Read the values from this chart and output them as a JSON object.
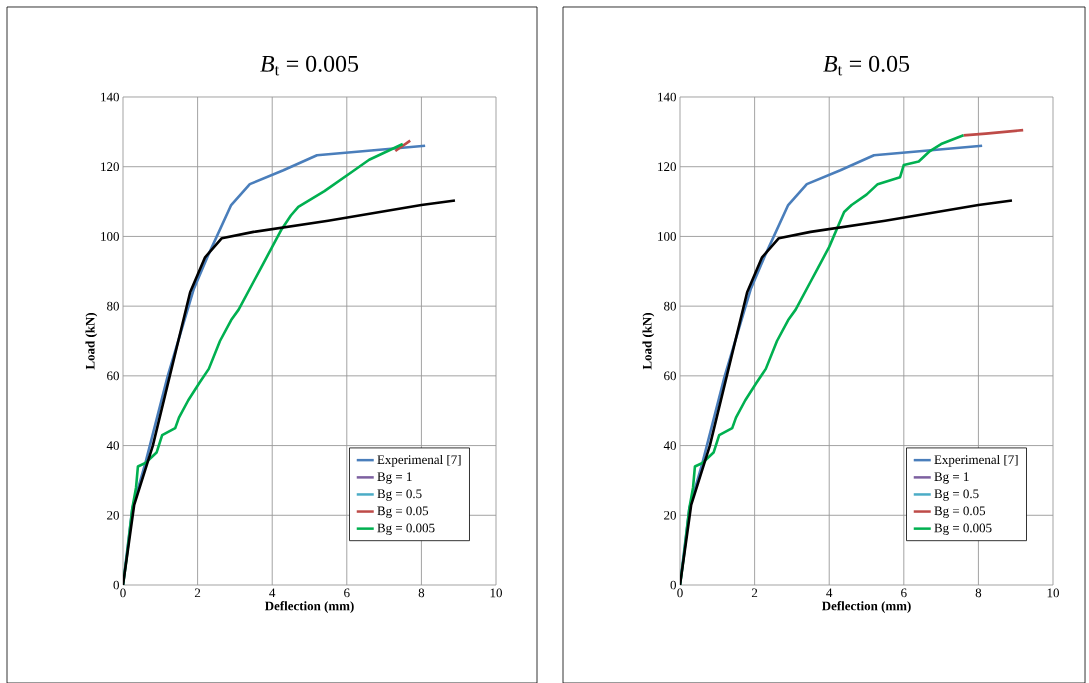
{
  "chart_data": [
    {
      "type": "line",
      "title": "*B*$_{t}$ = 0.005",
      "xlabel": "Deflection (mm)",
      "ylabel": "Load  (kN)",
      "xlim": [
        0,
        10
      ],
      "ylim": [
        0,
        140
      ],
      "xticks": [
        0,
        2,
        4,
        6,
        8,
        10
      ],
      "yticks": [
        0,
        20,
        40,
        60,
        80,
        100,
        120,
        140
      ],
      "grid": true,
      "legend": "bottom right",
      "series": [
        {
          "name": "Experimenal [7]",
          "color": "#4a7ebb",
          "x": [
            0,
            0.25,
            0.6,
            1.2,
            1.9,
            2.3,
            2.9,
            3.4,
            4.3,
            5.2,
            6.5,
            8.1
          ],
          "values": [
            0,
            22,
            35,
            60,
            85,
            95,
            109,
            115,
            119,
            123.3,
            124.5,
            126
          ]
        },
        {
          "name": "Bg = 1",
          "color": "#7d60a0"
        },
        {
          "name": "Bg = 0.5",
          "color": "#4bacc6"
        },
        {
          "name": "Bg = 0.05",
          "color": "#be4b48",
          "x": [
            7.3,
            7.7
          ],
          "values": [
            124.5,
            127.5
          ]
        },
        {
          "name": "Bg = 0.005",
          "color": "#00b050",
          "x": [
            0,
            0.1,
            0.25,
            0.35,
            0.4,
            0.6,
            0.9,
            1.05,
            1.4,
            1.5,
            1.75,
            2.05,
            2.3,
            2.6,
            2.9,
            3.1,
            3.5,
            3.7,
            4.0,
            4.25,
            4.5,
            4.7,
            5.4,
            5.8,
            6.2,
            6.6,
            7.0,
            7.5
          ],
          "values": [
            0,
            8,
            22,
            28,
            34,
            35,
            38,
            43,
            45,
            48,
            53,
            58,
            62,
            70,
            76,
            79,
            87,
            91,
            97,
            102,
            106,
            108.5,
            113,
            116,
            119,
            122,
            124,
            126.5
          ]
        },
        {
          "color": "#000000",
          "x": [
            0,
            0.3,
            0.8,
            1.8,
            2.2,
            2.65,
            3.5,
            5.5,
            8.0,
            8.9
          ],
          "values": [
            0,
            23,
            40,
            84,
            94,
            99.5,
            101.3,
            104.5,
            109,
            110.3
          ]
        }
      ]
    },
    {
      "type": "line",
      "title": "*B*$_{t}$ = 0.05",
      "xlabel": "Deflection (mm)",
      "ylabel": "Load  (kN)",
      "xlim": [
        0,
        10
      ],
      "ylim": [
        0,
        140
      ],
      "xticks": [
        0,
        2,
        4,
        6,
        8,
        10
      ],
      "yticks": [
        0,
        20,
        40,
        60,
        80,
        100,
        120,
        140
      ],
      "grid": true,
      "legend": "bottom right",
      "series": [
        {
          "name": "Experimenal [7]",
          "color": "#4a7ebb",
          "x": [
            0,
            0.25,
            0.6,
            1.2,
            1.9,
            2.3,
            2.9,
            3.4,
            4.3,
            5.2,
            6.5,
            8.1
          ],
          "values": [
            0,
            22,
            35,
            60,
            85,
            95,
            109,
            115,
            119,
            123.3,
            124.5,
            126
          ]
        },
        {
          "name": "Bg = 1",
          "color": "#7d60a0"
        },
        {
          "name": "Bg = 0.5",
          "color": "#4bacc6"
        },
        {
          "name": "Bg = 0.05",
          "color": "#be4b48",
          "x": [
            7.6,
            8.2,
            9.2
          ],
          "values": [
            129,
            129.5,
            130.5
          ]
        },
        {
          "name": "Bg = 0.005",
          "color": "#00b050",
          "x": [
            0,
            0.1,
            0.25,
            0.35,
            0.4,
            0.6,
            0.9,
            1.05,
            1.4,
            1.5,
            1.75,
            2.05,
            2.3,
            2.6,
            2.9,
            3.1,
            3.5,
            3.7,
            4.0,
            4.4,
            4.6,
            5.0,
            5.3,
            5.9,
            6.0,
            6.4,
            6.7,
            7.0,
            7.6
          ],
          "values": [
            0,
            8,
            22,
            28,
            34,
            35,
            38,
            43,
            45,
            48,
            53,
            58,
            62,
            70,
            76,
            79,
            87,
            91,
            97,
            107,
            109,
            112,
            115,
            117,
            120.5,
            121.5,
            124.5,
            126.5,
            129
          ]
        },
        {
          "color": "#000000",
          "x": [
            0,
            0.3,
            0.8,
            1.8,
            2.2,
            2.65,
            3.5,
            5.5,
            8.0,
            8.9
          ],
          "values": [
            0,
            23,
            40,
            84,
            94,
            99.5,
            101.3,
            104.5,
            109,
            110.3
          ]
        }
      ]
    }
  ]
}
